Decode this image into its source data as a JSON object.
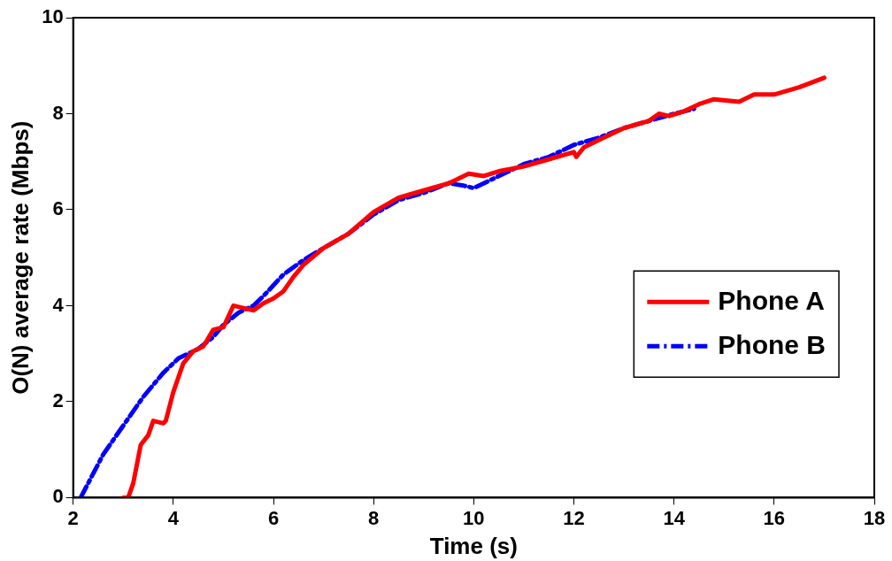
{
  "chart_data": {
    "type": "line",
    "xlabel": "Time (s)",
    "ylabel": "O(N) average rate (Mbps)",
    "xlim": [
      2,
      18
    ],
    "xticks": [
      2,
      4,
      6,
      8,
      10,
      12,
      14,
      16,
      18
    ],
    "ylim": [
      0,
      10
    ],
    "yticks": [
      0,
      2,
      4,
      6,
      8,
      10
    ],
    "grid": false,
    "legend": "right",
    "marker": "none",
    "series": [
      {
        "name": "Phone A",
        "color": "#ff0000",
        "line_style": "solid",
        "x": [
          3.0,
          3.1,
          3.2,
          3.35,
          3.5,
          3.6,
          3.8,
          3.85,
          4.0,
          4.2,
          4.4,
          4.6,
          4.8,
          5.0,
          5.2,
          5.4,
          5.6,
          5.8,
          6.0,
          6.2,
          6.4,
          6.6,
          7.0,
          7.5,
          8.0,
          8.5,
          9.0,
          9.5,
          9.9,
          10.2,
          10.5,
          11,
          11.5,
          12,
          12.05,
          12.2,
          12.6,
          13,
          13.5,
          13.7,
          13.9,
          14.2,
          14.5,
          14.8,
          15.3,
          15.6,
          16,
          16.5,
          17
        ],
        "values": [
          0,
          0,
          0.3,
          1.1,
          1.3,
          1.6,
          1.55,
          1.6,
          2.2,
          2.8,
          3.05,
          3.15,
          3.5,
          3.55,
          4.0,
          3.95,
          3.9,
          4.05,
          4.15,
          4.3,
          4.6,
          4.85,
          5.2,
          5.5,
          5.95,
          6.25,
          6.4,
          6.55,
          6.75,
          6.7,
          6.8,
          6.9,
          7.05,
          7.2,
          7.1,
          7.3,
          7.5,
          7.7,
          7.85,
          8.0,
          7.95,
          8.05,
          8.2,
          8.3,
          8.25,
          8.4,
          8.4,
          8.55,
          8.75
        ]
      },
      {
        "name": "Phone B",
        "color": "#0000ff",
        "line_style": "dashed",
        "x": [
          2.15,
          2.3,
          2.6,
          3.0,
          3.4,
          3.8,
          4.1,
          4.5,
          4.8,
          5.0,
          5.3,
          5.6,
          5.8,
          6.2,
          6.6,
          7.0,
          7.5,
          8.0,
          8.5,
          9.0,
          9.5,
          9.8,
          10.0,
          10.4,
          11,
          11.5,
          12,
          12.5,
          13,
          13.5,
          14,
          14.4
        ],
        "values": [
          0,
          0.3,
          0.9,
          1.5,
          2.1,
          2.6,
          2.9,
          3.1,
          3.35,
          3.6,
          3.85,
          4.0,
          4.2,
          4.65,
          4.95,
          5.2,
          5.5,
          5.9,
          6.2,
          6.35,
          6.55,
          6.5,
          6.45,
          6.65,
          6.95,
          7.1,
          7.35,
          7.5,
          7.7,
          7.85,
          8.0,
          8.1
        ]
      }
    ]
  }
}
